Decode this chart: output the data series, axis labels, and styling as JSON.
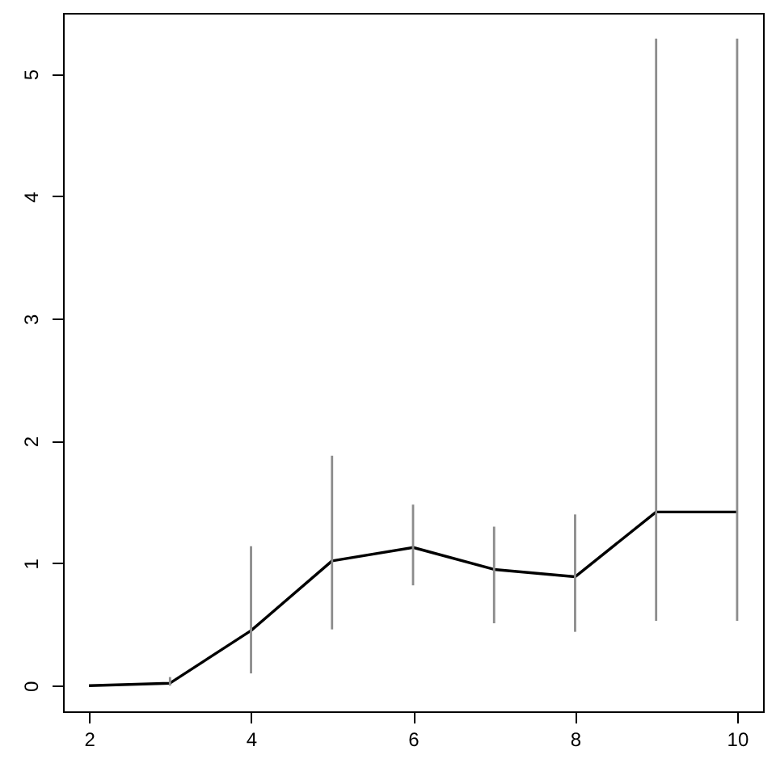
{
  "chart_data": {
    "type": "line",
    "x": [
      2,
      3,
      4,
      5,
      6,
      7,
      8,
      9,
      10
    ],
    "series": [
      {
        "color": "#000000",
        "values": [
          0.0,
          0.02,
          0.45,
          1.02,
          1.13,
          0.95,
          0.89,
          1.42,
          1.42
        ],
        "errors": [
          null,
          [
            0.0,
            0.07
          ],
          [
            0.1,
            1.14
          ],
          [
            0.46,
            1.88
          ],
          [
            0.82,
            1.48
          ],
          [
            0.51,
            1.3
          ],
          [
            0.44,
            1.4
          ],
          [
            0.53,
            5.29
          ],
          [
            0.53,
            5.29
          ]
        ]
      }
    ],
    "xlim": [
      1.68,
      10.32
    ],
    "ylim": [
      -0.21,
      5.5
    ],
    "xticks": [
      2,
      4,
      6,
      8,
      10
    ],
    "yticks": [
      0,
      1,
      2,
      3,
      4,
      5
    ]
  }
}
